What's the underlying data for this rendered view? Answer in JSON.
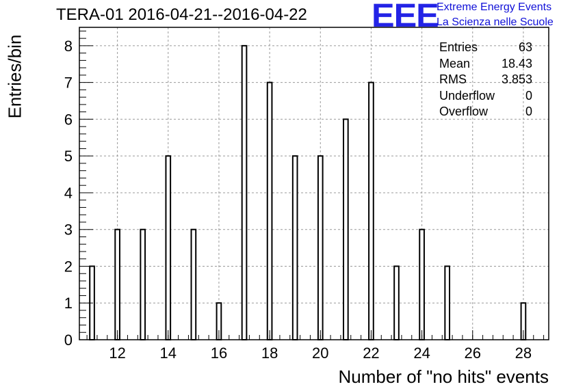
{
  "header": {
    "title": "TERA-01 2016-04-21--2016-04-22",
    "logo_text": "EEE",
    "tagline_1": "Extreme Energy Events",
    "tagline_2": "La Scienza nelle Scuole"
  },
  "stats": [
    {
      "label": "Entries",
      "value": "63"
    },
    {
      "label": "Mean",
      "value": "18.43"
    },
    {
      "label": "RMS",
      "value": "3.853"
    },
    {
      "label": "Underflow",
      "value": "0"
    },
    {
      "label": "Overflow",
      "value": "0"
    }
  ],
  "colors": {
    "logo": "#2323e6",
    "tagline": "#1010d8",
    "bars": "#000000",
    "grid": "#999999"
  },
  "chart_data": {
    "type": "bar",
    "title": "TERA-01 2016-04-21--2016-04-22",
    "xlabel": "Number of \"no hits\" events",
    "ylabel": "Entries/bin",
    "xlim": [
      10.5,
      29
    ],
    "ylim": [
      0,
      8.5
    ],
    "grid": true,
    "x_ticks": [
      12,
      14,
      16,
      18,
      20,
      22,
      24,
      26,
      28
    ],
    "y_ticks": [
      0,
      1,
      2,
      3,
      4,
      5,
      6,
      7,
      8
    ],
    "bin_width": 0.18,
    "categories": [
      11,
      12,
      13,
      14,
      15,
      16,
      17,
      18,
      19,
      20,
      21,
      22,
      23,
      24,
      25,
      28
    ],
    "values": [
      2,
      3,
      3,
      5,
      3,
      1,
      8,
      7,
      5,
      5,
      6,
      7,
      2,
      3,
      2,
      1
    ]
  }
}
